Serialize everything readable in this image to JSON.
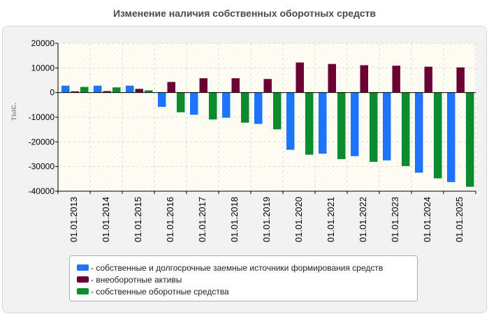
{
  "chart_data": {
    "type": "bar",
    "title": "Изменение наличия собственных оборотных средств",
    "ylabel": "тыс.",
    "xlabel": "",
    "ylim": [
      -40000,
      20000
    ],
    "yticks": [
      20000,
      10000,
      0,
      -10000,
      -20000,
      -30000,
      -40000
    ],
    "grid": true,
    "legend_position": "bottom",
    "categories": [
      "01.01.2013",
      "01.01.2014",
      "01.01.2015",
      "01.01.2016",
      "01.01.2017",
      "01.01.2018",
      "01.01.2019",
      "01.01.2020",
      "01.01.2021",
      "01.01.2022",
      "01.01.2023",
      "01.01.2024",
      "01.01.2025"
    ],
    "series": [
      {
        "name": "- собственные и долгосрочные заемные источники формирования средств",
        "color": "#1f74ff",
        "values": [
          2800,
          2800,
          2800,
          -5800,
          -9000,
          -10200,
          -12700,
          -23200,
          -24800,
          -25800,
          -27500,
          -32500,
          -36300
        ]
      },
      {
        "name": "- внеоборотные активы",
        "color": "#6b0032",
        "values": [
          500,
          600,
          1500,
          4300,
          5800,
          5800,
          5500,
          12200,
          11600,
          11100,
          10900,
          10500,
          10200
        ]
      },
      {
        "name": "- собственные оборотные средства",
        "color": "#0b8a2e",
        "values": [
          2300,
          2100,
          900,
          -8000,
          -10900,
          -12200,
          -14900,
          -25200,
          -27000,
          -28100,
          -29800,
          -34800,
          -38200
        ]
      }
    ]
  }
}
